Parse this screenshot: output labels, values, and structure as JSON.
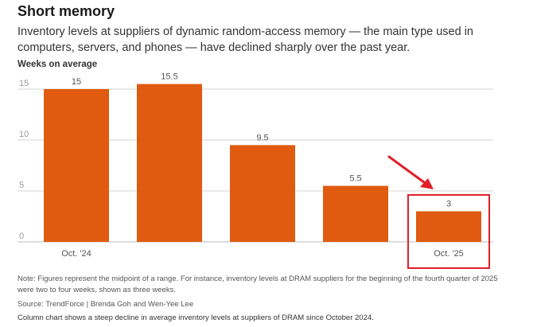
{
  "header": {
    "title": "Short memory",
    "subtitle": "Inventory levels at suppliers of dynamic random-access memory — the main type used in computers, servers, and phones — have declined sharply over the past year."
  },
  "chart_data": {
    "type": "bar",
    "title": "Short memory",
    "ylabel": "Weeks on average",
    "xlabel": "",
    "ylim": [
      0,
      15.5
    ],
    "yticks": [
      0,
      5,
      10,
      15
    ],
    "grid": true,
    "categories": [
      "Oct. '24",
      "",
      "",
      "",
      "Oct. '25"
    ],
    "values": [
      15,
      15.5,
      9.5,
      5.5,
      3
    ],
    "data_labels": [
      "15",
      "15.5",
      "9.5",
      "5.5",
      "3"
    ],
    "bar_color": "#e05a10",
    "highlight": {
      "index": 4,
      "color": "#e0202a"
    }
  },
  "footer": {
    "note": "Note: Figures represent the midpoint of a range. For instance, inventory levels at DRAM suppliers for the beginning of the fourth quarter of 2025 were two to four weeks, shown as three weeks.",
    "source": "Source: TrendForce | Brenda Goh and Wen-Yee Lee",
    "description": "Column chart shows a steep decline in average inventory levels at suppliers of DRAM since October 2024."
  }
}
